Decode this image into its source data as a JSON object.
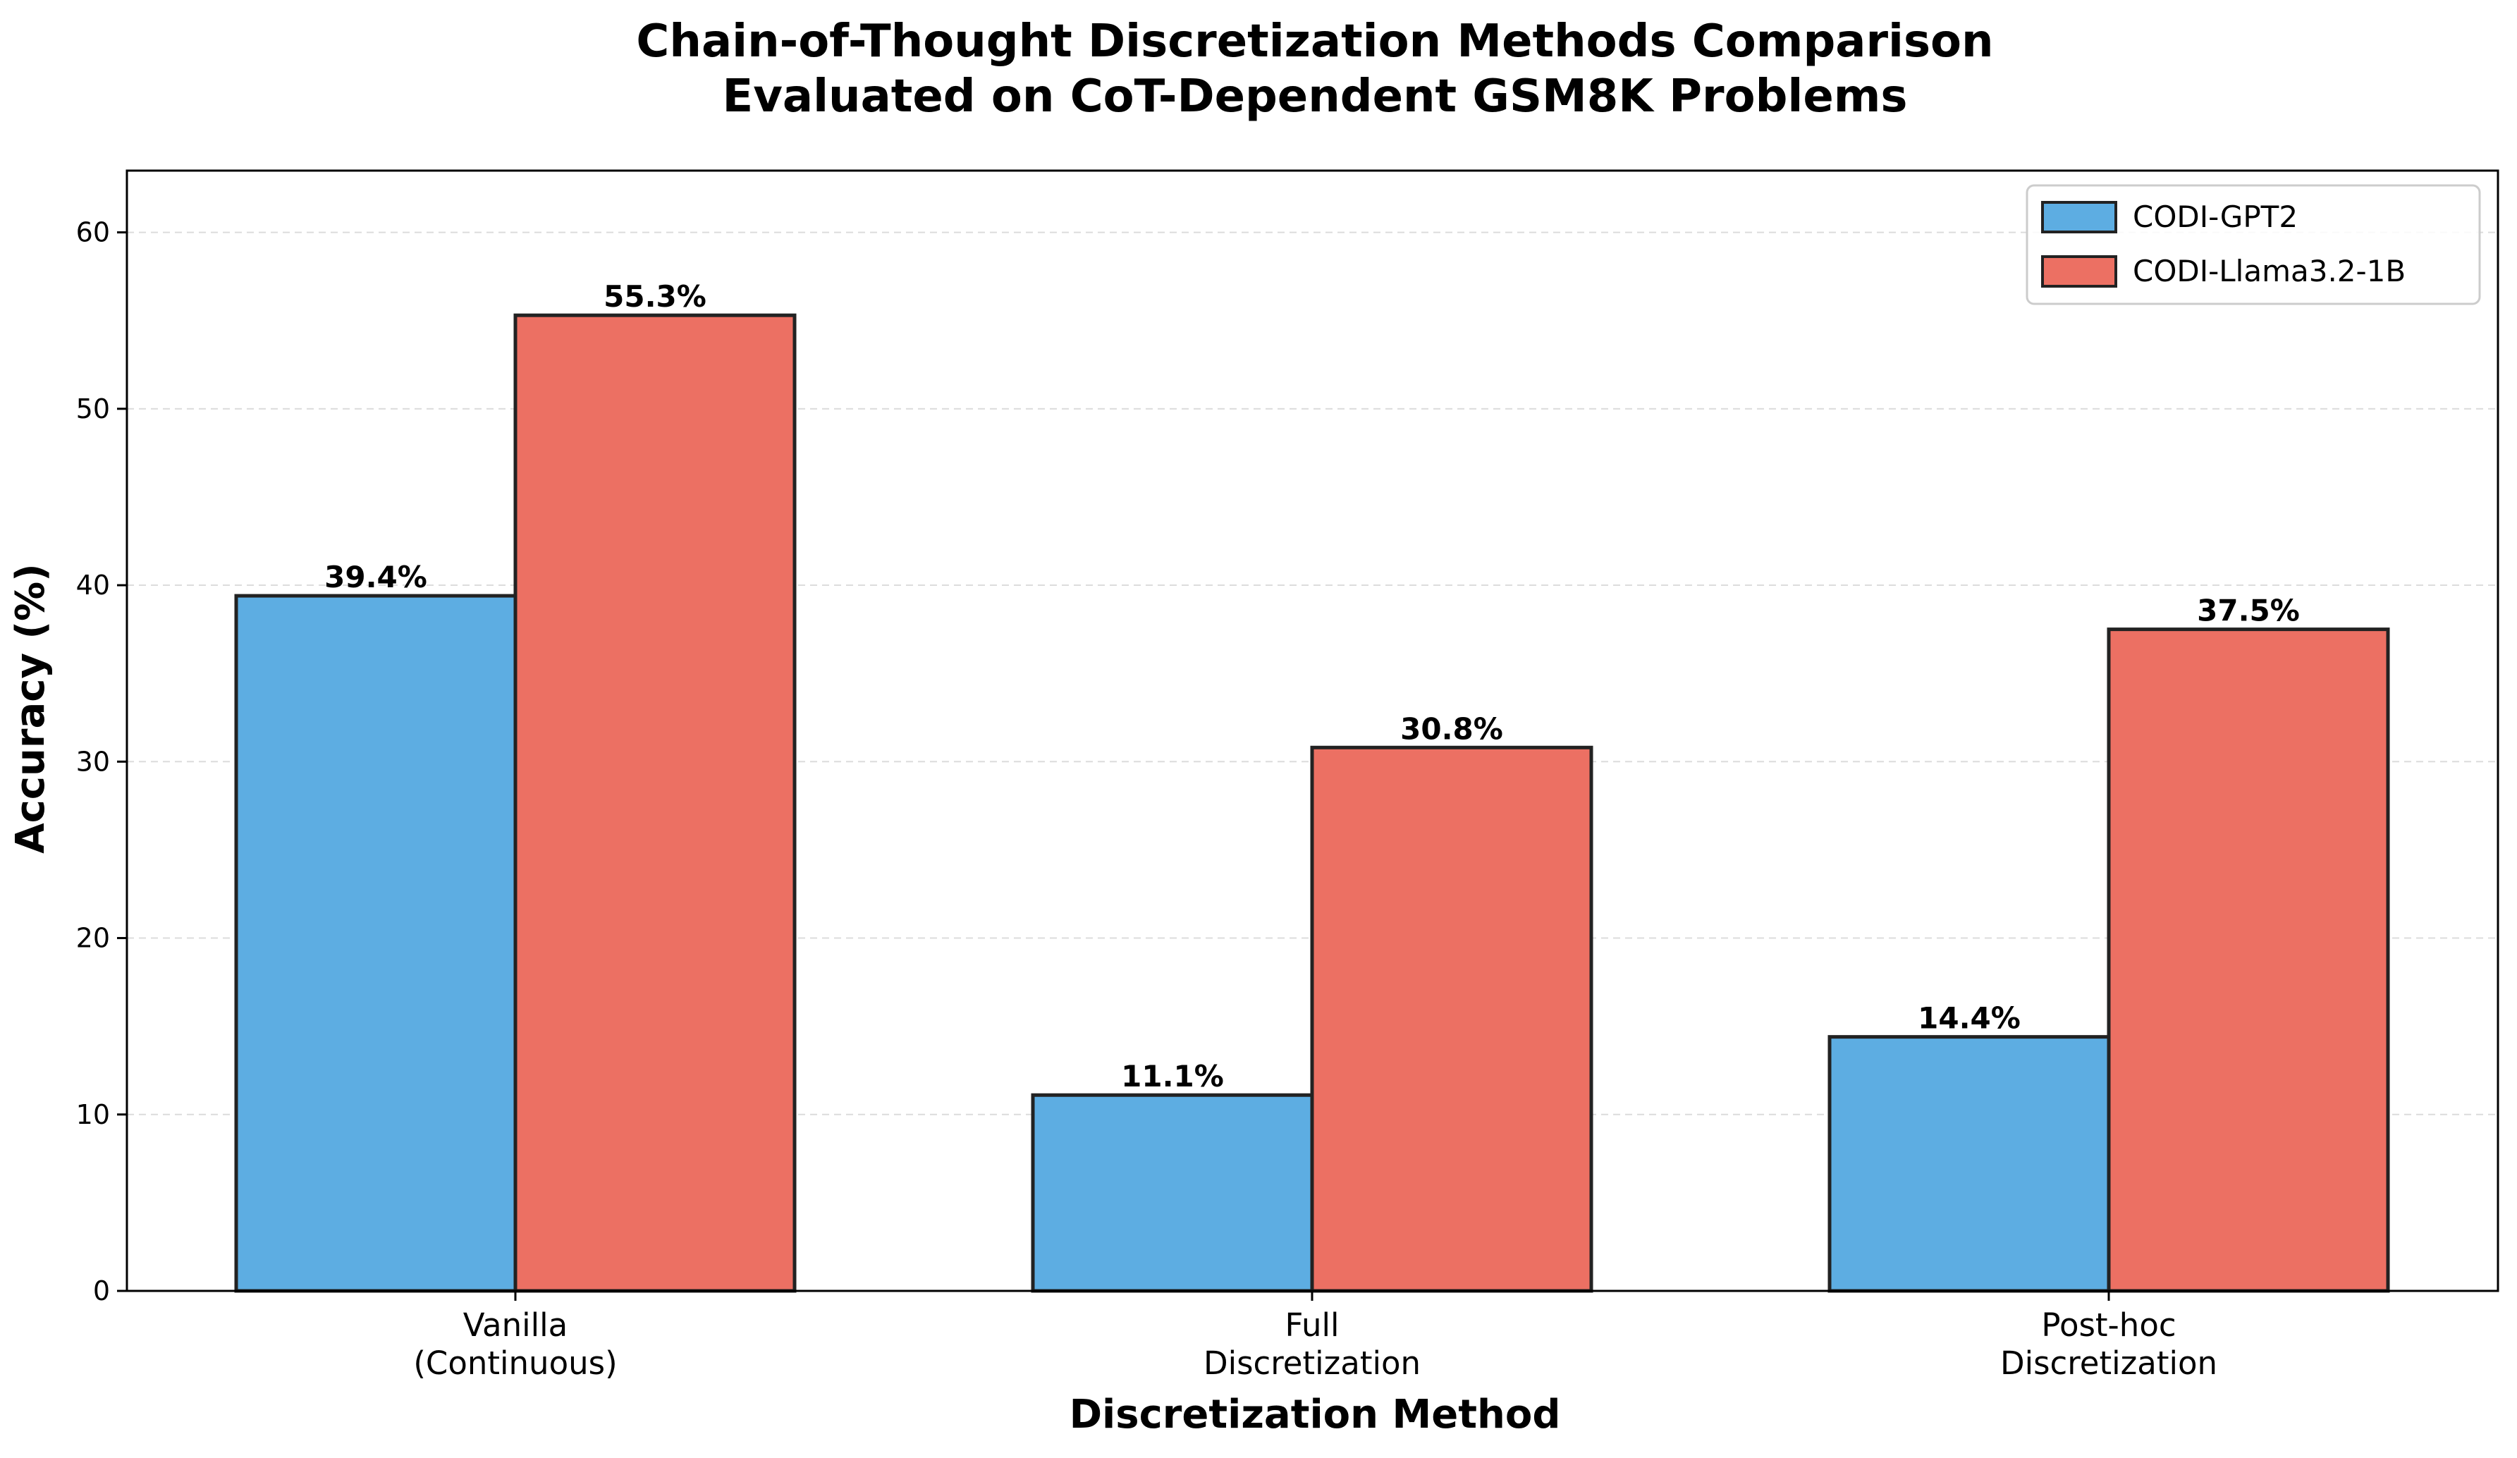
{
  "chart_data": {
    "type": "bar",
    "title": [
      "Chain-of-Thought Discretization Methods Comparison",
      "Evaluated on CoT-Dependent GSM8K Problems"
    ],
    "xlabel": "Discretization Method",
    "ylabel": "Accuracy (%)",
    "ylim": [
      0,
      63.5
    ],
    "yticks": [
      0,
      10,
      20,
      30,
      40,
      50,
      60
    ],
    "grid": "y-dashed",
    "legend_position": "top-right",
    "categories": [
      [
        "Vanilla",
        "(Continuous)"
      ],
      [
        "Full",
        "Discretization"
      ],
      [
        "Post-hoc",
        "Discretization"
      ]
    ],
    "series": [
      {
        "name": "CODI-GPT2",
        "color": "#5DADE2",
        "values": [
          39.4,
          11.1,
          14.4
        ],
        "labels": [
          "39.4%",
          "11.1%",
          "14.4%"
        ]
      },
      {
        "name": "CODI-Llama3.2-1B",
        "color": "#EC7063",
        "values": [
          55.3,
          30.8,
          37.5
        ],
        "labels": [
          "55.3%",
          "30.8%",
          "37.5%"
        ]
      }
    ]
  }
}
